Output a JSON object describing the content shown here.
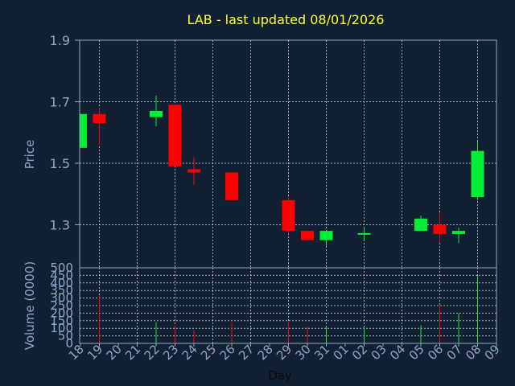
{
  "chart_data": {
    "type": "candlestick",
    "title": "LAB - last updated 08/01/2026",
    "xlabel": "Day",
    "price_panel": {
      "ylabel": "Price",
      "yticks": [
        "1.9",
        "1.7",
        "1.5",
        "1.3"
      ],
      "ylim": [
        1.16,
        1.9
      ],
      "grid": true
    },
    "volume_panel": {
      "ylabel": "Volume (0000)",
      "yticks": [
        "500",
        "450",
        "400",
        "350",
        "300",
        "250",
        "200",
        "150",
        "100",
        "50",
        "0"
      ],
      "ylim": [
        0,
        500
      ],
      "grid": true
    },
    "x_labels": [
      "18",
      "19",
      "20",
      "21",
      "22",
      "23",
      "24",
      "25",
      "26",
      "27",
      "28",
      "29",
      "30",
      "31",
      "01",
      "02",
      "03",
      "04",
      "05",
      "06",
      "07",
      "08",
      "09"
    ],
    "candles": [
      {
        "day": "18",
        "open": 1.55,
        "high": 1.66,
        "low": 1.55,
        "close": 1.66,
        "volume": 0
      },
      {
        "day": "19",
        "open": 1.66,
        "high": 1.68,
        "low": 1.56,
        "close": 1.63,
        "volume": 320
      },
      {
        "day": "22",
        "open": 1.65,
        "high": 1.72,
        "low": 1.62,
        "close": 1.67,
        "volume": 140
      },
      {
        "day": "23",
        "open": 1.69,
        "high": 1.69,
        "low": 1.49,
        "close": 1.49,
        "volume": 120
      },
      {
        "day": "24",
        "open": 1.48,
        "high": 1.52,
        "low": 1.43,
        "close": 1.47,
        "volume": 90
      },
      {
        "day": "26",
        "open": 1.47,
        "high": 1.47,
        "low": 1.38,
        "close": 1.38,
        "volume": 140
      },
      {
        "day": "29",
        "open": 1.38,
        "high": 1.39,
        "low": 1.27,
        "close": 1.28,
        "volume": 140
      },
      {
        "day": "30",
        "open": 1.28,
        "high": 1.28,
        "low": 1.25,
        "close": 1.25,
        "volume": 110
      },
      {
        "day": "31",
        "open": 1.25,
        "high": 1.28,
        "low": 1.23,
        "close": 1.28,
        "volume": 110
      },
      {
        "day": "02",
        "open": 1.27,
        "high": 1.29,
        "low": 1.25,
        "close": 1.27,
        "volume": 110
      },
      {
        "day": "05",
        "open": 1.28,
        "high": 1.33,
        "low": 1.28,
        "close": 1.32,
        "volume": 120
      },
      {
        "day": "06",
        "open": 1.3,
        "high": 1.34,
        "low": 1.24,
        "close": 1.27,
        "volume": 250
      },
      {
        "day": "07",
        "open": 1.27,
        "high": 1.29,
        "low": 1.24,
        "close": 1.28,
        "volume": 200
      },
      {
        "day": "08",
        "open": 1.39,
        "high": 1.57,
        "low": 1.38,
        "close": 1.54,
        "volume": 450
      }
    ],
    "colors": {
      "background": "#112033",
      "frame": "#8ea8c7",
      "grid": "#c5d1de",
      "up": "#00ee33",
      "down": "#ff0000",
      "title": "#ffff33",
      "axis_text": "#8ea8c7",
      "xlabel_text": "#0a0a0a"
    }
  }
}
